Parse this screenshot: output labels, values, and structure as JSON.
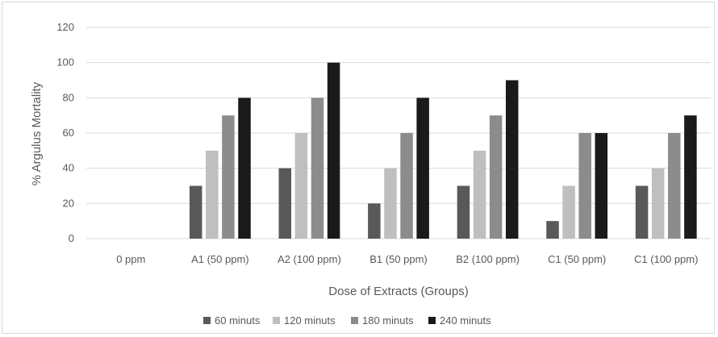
{
  "chart_data": {
    "type": "bar",
    "title": "",
    "xlabel": "Dose of Extracts (Groups)",
    "ylabel": "% Argulus Mortality",
    "ylim": [
      0,
      120
    ],
    "yticks": [
      "0",
      "20",
      "40",
      "60",
      "80",
      "100",
      "120"
    ],
    "grid": true,
    "legend_position": "bottom",
    "categories": [
      "0 ppm",
      "A1 (50 ppm)",
      "A2 (100 ppm)",
      "B1 (50 ppm)",
      "B2 (100 ppm)",
      "C1 (50 ppm)",
      "C1 (100 ppm)"
    ],
    "series": [
      {
        "name": "60 minuts",
        "color": "#595959",
        "values": [
          0,
          30,
          40,
          20,
          30,
          10,
          30
        ]
      },
      {
        "name": "120 minuts",
        "color": "#bfbfbf",
        "values": [
          0,
          50,
          60,
          40,
          50,
          30,
          40
        ]
      },
      {
        "name": "180 minuts",
        "color": "#8c8c8c",
        "values": [
          0,
          70,
          80,
          60,
          70,
          60,
          60
        ]
      },
      {
        "name": "240 minuts",
        "color": "#1a1a1a",
        "values": [
          0,
          80,
          100,
          80,
          90,
          60,
          70
        ]
      }
    ]
  }
}
